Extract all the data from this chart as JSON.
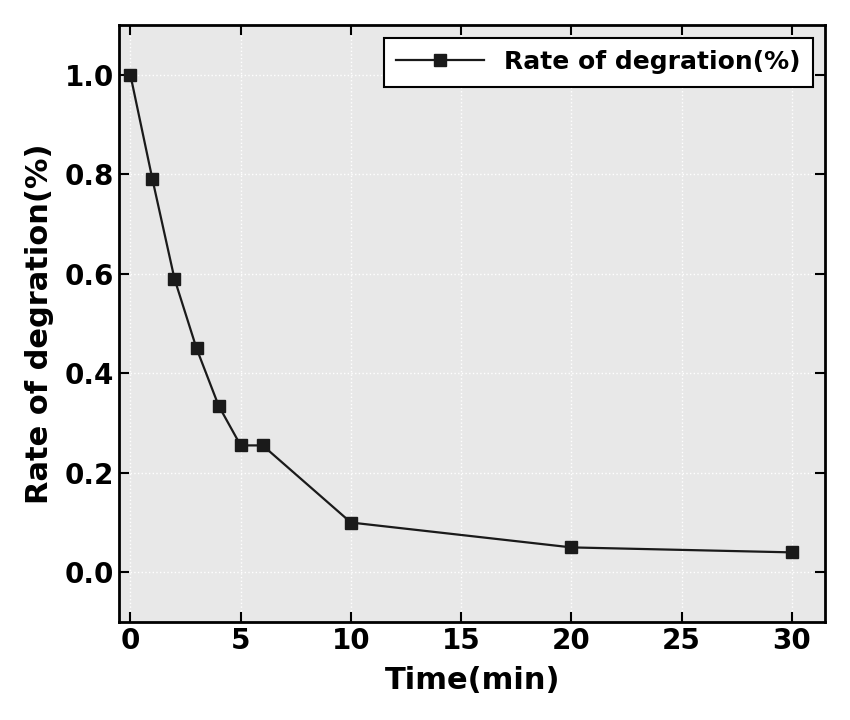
{
  "x": [
    0,
    1,
    2,
    3,
    4,
    5,
    6,
    10,
    20,
    30
  ],
  "y": [
    1.0,
    0.79,
    0.59,
    0.45,
    0.335,
    0.255,
    0.255,
    0.1,
    0.05,
    0.04
  ],
  "xlabel": "Time(min)",
  "ylabel": "Rate of degration(%)",
  "legend_label": "Rate of degration(%)",
  "line_color": "#1a1a1a",
  "marker": "s",
  "marker_size": 8,
  "marker_color": "#1a1a1a",
  "linewidth": 1.6,
  "xlim": [
    -0.5,
    31.5
  ],
  "ylim": [
    -0.1,
    1.1
  ],
  "xticks": [
    0,
    5,
    10,
    15,
    20,
    25,
    30
  ],
  "yticks": [
    0.0,
    0.2,
    0.4,
    0.6,
    0.8,
    1.0
  ],
  "background_color": "#ffffff",
  "plot_bg_color": "#e8e8e8",
  "grid_color": "#ffffff",
  "label_fontsize": 22,
  "tick_fontsize": 20,
  "legend_fontsize": 18
}
